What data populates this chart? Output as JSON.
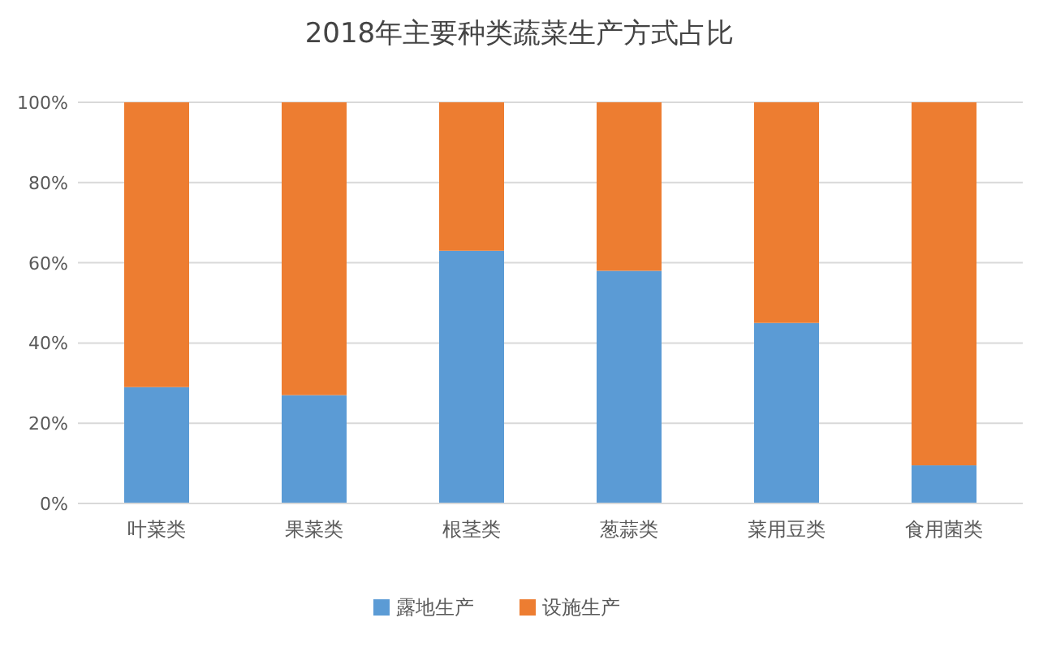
{
  "chart_data": {
    "type": "bar",
    "title": "2018年主要种类蔬菜生产方式占比",
    "stacked": true,
    "categories": [
      "叶菜类",
      "果菜类",
      "根茎类",
      "葱蒜类",
      "菜用豆类",
      "食用菌类"
    ],
    "series": [
      {
        "name": "露地生产",
        "color": "#5b9bd5",
        "values": [
          29,
          27,
          63,
          58,
          45,
          9.5
        ]
      },
      {
        "name": "设施生产",
        "color": "#ed7d31",
        "values": [
          71,
          73,
          37,
          42,
          55,
          90.5
        ]
      }
    ],
    "ylim": [
      0,
      100
    ],
    "yticks": [
      {
        "value": 0,
        "label": "0%"
      },
      {
        "value": 20,
        "label": "20%"
      },
      {
        "value": 40,
        "label": "40%"
      },
      {
        "value": 60,
        "label": "60%"
      },
      {
        "value": 80,
        "label": "80%"
      },
      {
        "value": 100,
        "label": "100%"
      }
    ],
    "grid": "y",
    "legend": "bottom"
  }
}
